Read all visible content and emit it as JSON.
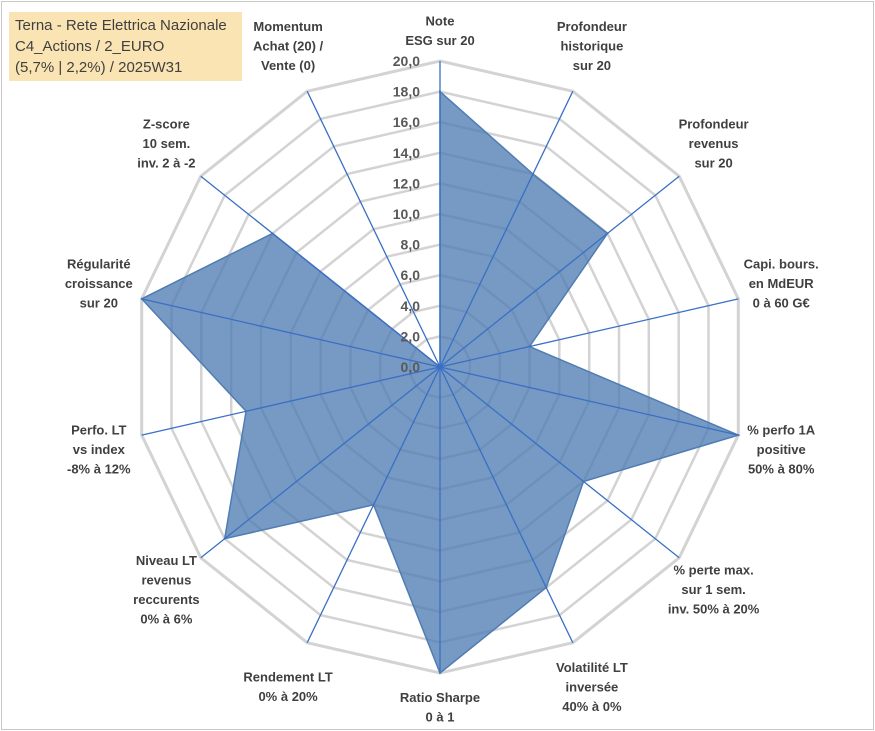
{
  "title_box": {
    "line1": "Terna - Rete Elettrica Nazionale",
    "line2": "C4_Actions / 2_EURO",
    "line3": "(5,7% | 2,2%) / 2025W31"
  },
  "colors": {
    "fill": "#4f7db3",
    "axis": "#3a6fc4",
    "grid": "#d3d3d3",
    "title_bg": "#fbe4b4"
  },
  "chart_data": {
    "type": "radar",
    "title": "",
    "range": [
      0,
      20
    ],
    "ticks": [
      "0,0",
      "2,0",
      "4,0",
      "6,0",
      "8,0",
      "10,0",
      "12,0",
      "14,0",
      "16,0",
      "18,0",
      "20,0"
    ],
    "grid": true,
    "categories": [
      [
        "Note",
        "ESG sur 20"
      ],
      [
        "Profondeur",
        "historique",
        "sur 20"
      ],
      [
        "Profondeur",
        "revenus",
        "sur 20"
      ],
      [
        "Capi. bours.",
        "en MdEUR",
        "0 à 60 G€"
      ],
      [
        "% perfo 1A",
        "positive",
        "50% à 80%"
      ],
      [
        "% perte max.",
        "sur 1 sem.",
        "inv. 50% à 20%"
      ],
      [
        "Volatilité LT",
        "inversée",
        "40% à 0%"
      ],
      [
        "Ratio Sharpe",
        "0 à 1"
      ],
      [
        "Rendement LT",
        "0% à 20%"
      ],
      [
        "Niveau LT",
        "revenus",
        "reccurents",
        "0% à 6%"
      ],
      [
        "Perfo. LT",
        "vs index",
        "-8% à 12%"
      ],
      [
        "Régularité",
        "croissance",
        "sur 20"
      ],
      [
        "Z-score",
        "10 sem.",
        "inv. 2 à -2"
      ],
      [
        "Momentum",
        "Achat (20) /",
        "Vente (0)"
      ]
    ],
    "values": [
      18.0,
      14.0,
      14.0,
      6.0,
      20.0,
      12.0,
      16.0,
      20.0,
      10.0,
      18.0,
      13.0,
      20.0,
      14.0,
      0.0
    ]
  }
}
